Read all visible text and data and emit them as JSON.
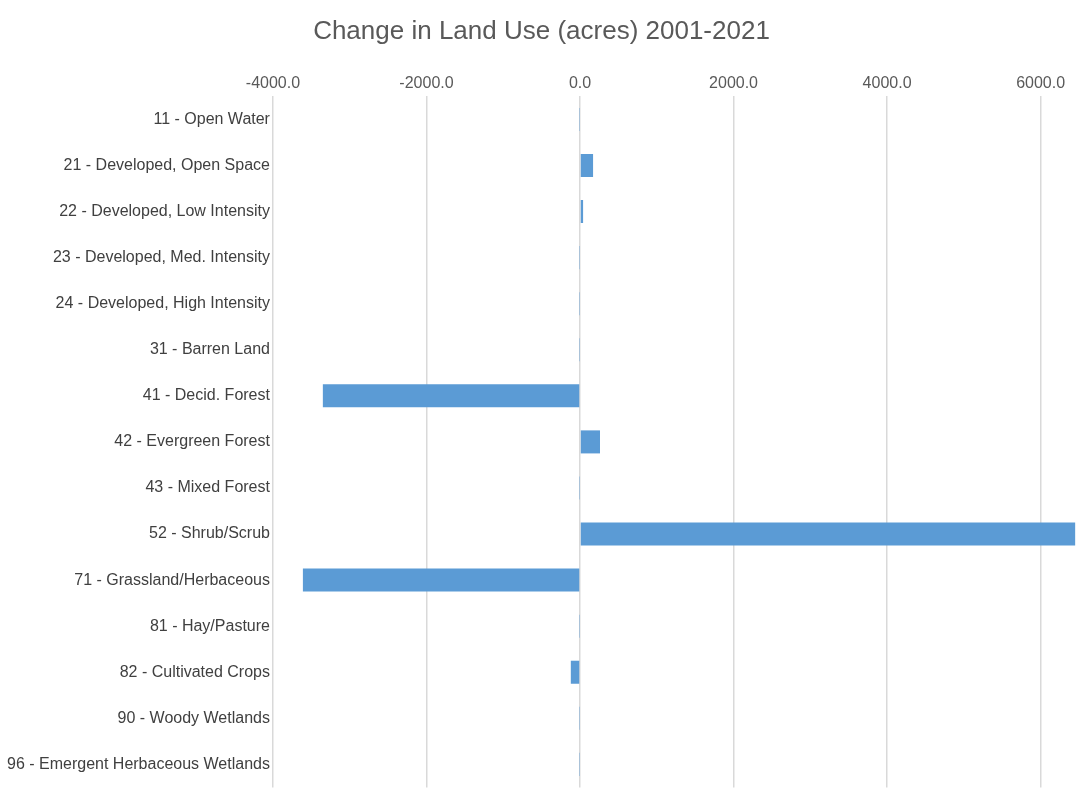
{
  "chart_data": {
    "type": "bar",
    "orientation": "horizontal",
    "title": "Change in Land Use (acres) 2001-2021",
    "categories": [
      "11 - Open Water",
      "21 - Developed, Open Space",
      "22 - Developed, Low Intensity",
      "23 - Developed, Med. Intensity",
      "24 - Developed, High Intensity",
      "31 - Barren Land",
      "41 - Decid. Forest",
      "42 - Evergreen Forest",
      "43 - Mixed Forest",
      "52 - Shrub/Scrub",
      "71 - Grassland/Herbaceous",
      "81 - Hay/Pasture",
      "82 - Cultivated Crops",
      "90 - Woody Wetlands",
      "96 - Emergent Herbaceous Wetlands"
    ],
    "values": [
      -5,
      170,
      40,
      -5,
      -5,
      -5,
      -3350,
      260,
      -5,
      6450,
      -3610,
      -5,
      -120,
      -5,
      -5
    ],
    "color": "#5b9bd5",
    "xlim": [
      -4000,
      6500
    ],
    "xticks": [
      {
        "value": -4000,
        "label": "-4000.0"
      },
      {
        "value": -2000,
        "label": "-2000.0"
      },
      {
        "value": 0,
        "label": "0.0"
      },
      {
        "value": 2000,
        "label": "2000.0"
      },
      {
        "value": 4000,
        "label": "4000.0"
      },
      {
        "value": 6000,
        "label": "6000.0"
      }
    ],
    "grid": "x",
    "legend": false
  }
}
